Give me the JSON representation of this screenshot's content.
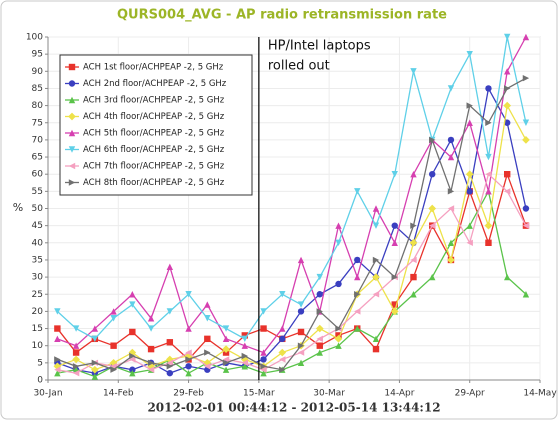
{
  "chart_data": {
    "type": "line",
    "title": "QURS004_AVG - AP radio retransmission rate",
    "x_label": "2012-02-01 00:44:12 - 2012-05-14 13:44:12",
    "y_label": "%",
    "annotation": {
      "x": "2012-03-15",
      "lines": [
        "HP/Intel laptops",
        "rolled out"
      ]
    },
    "x": [
      "2012-02-01",
      "2012-02-05",
      "2012-02-09",
      "2012-02-13",
      "2012-02-17",
      "2012-02-21",
      "2012-02-25",
      "2012-02-29",
      "2012-03-04",
      "2012-03-08",
      "2012-03-12",
      "2012-03-16",
      "2012-03-20",
      "2012-03-24",
      "2012-03-28",
      "2012-04-01",
      "2012-04-05",
      "2012-04-09",
      "2012-04-13",
      "2012-04-17",
      "2012-04-21",
      "2012-04-25",
      "2012-04-29",
      "2012-05-03",
      "2012-05-07",
      "2012-05-11"
    ],
    "xlim": [
      "2012-01-30",
      "2012-05-14"
    ],
    "xticks": [
      {
        "value": "2012-01-30",
        "label": "30-Jan"
      },
      {
        "value": "2012-02-14",
        "label": "14-Feb"
      },
      {
        "value": "2012-02-29",
        "label": "29-Feb"
      },
      {
        "value": "2012-03-15",
        "label": "15-Mar"
      },
      {
        "value": "2012-03-30",
        "label": "30-Mar"
      },
      {
        "value": "2012-04-14",
        "label": "14-Apr"
      },
      {
        "value": "2012-04-29",
        "label": "29-Apr"
      },
      {
        "value": "2012-05-14",
        "label": "14-May"
      }
    ],
    "ylim": [
      0,
      100
    ],
    "yticks": [
      0,
      5,
      10,
      15,
      20,
      25,
      30,
      35,
      40,
      45,
      50,
      55,
      60,
      65,
      70,
      75,
      80,
      85,
      90,
      95,
      100
    ],
    "grid": true,
    "legend": "upper-left",
    "series": [
      {
        "name": "ACH 1st floor/ACHPEAP -2, 5 GHz",
        "color": "#e8322b",
        "marker": "square",
        "values": [
          15,
          8,
          12,
          10,
          14,
          9,
          11,
          6,
          12,
          8,
          13,
          15,
          12,
          14,
          10,
          13,
          15,
          9,
          22,
          30,
          45,
          35,
          55,
          40,
          60,
          45
        ]
      },
      {
        "name": "ACH 2nd floor/ACHPEAP -2, 5 GHz",
        "color": "#3a3fc0",
        "marker": "circle",
        "values": [
          5,
          3,
          2,
          4,
          3,
          5,
          2,
          4,
          3,
          5,
          4,
          6,
          12,
          20,
          25,
          28,
          35,
          30,
          45,
          40,
          60,
          70,
          55,
          85,
          75,
          50
        ]
      },
      {
        "name": "ACH 3rd floor/ACHPEAP -2, 5 GHz",
        "color": "#5ac34a",
        "marker": "triangle",
        "values": [
          2,
          3,
          1,
          4,
          2,
          3,
          6,
          2,
          5,
          3,
          4,
          2,
          3,
          5,
          8,
          10,
          15,
          12,
          20,
          25,
          30,
          40,
          45,
          55,
          30,
          25
        ]
      },
      {
        "name": "ACH 4th floor/ACHPEAP -2, 5 GHz",
        "color": "#eee24a",
        "marker": "diamond",
        "values": [
          4,
          6,
          3,
          5,
          8,
          4,
          6,
          7,
          5,
          9,
          6,
          4,
          8,
          10,
          15,
          12,
          25,
          30,
          20,
          40,
          50,
          35,
          60,
          45,
          80,
          70
        ]
      },
      {
        "name": "ACH 5th floor/ACHPEAP -2, 5 GHz",
        "color": "#d63fb0",
        "marker": "triangle",
        "values": [
          12,
          10,
          15,
          20,
          25,
          18,
          33,
          15,
          22,
          12,
          10,
          8,
          15,
          35,
          20,
          45,
          30,
          50,
          40,
          60,
          70,
          65,
          75,
          55,
          90,
          100
        ]
      },
      {
        "name": "ACH 6th floor/ACHPEAP -2, 5 GHz",
        "color": "#5fd0e8",
        "marker": "triangle-down",
        "values": [
          20,
          15,
          12,
          18,
          22,
          15,
          20,
          25,
          18,
          15,
          12,
          20,
          25,
          22,
          30,
          40,
          55,
          45,
          60,
          90,
          70,
          85,
          95,
          65,
          100,
          75
        ]
      },
      {
        "name": "ACH 7th floor/ACHPEAP -2, 5 GHz",
        "color": "#f5a0c0",
        "marker": "triangle-left",
        "values": [
          3,
          2,
          5,
          4,
          6,
          3,
          5,
          8,
          4,
          6,
          5,
          3,
          6,
          8,
          12,
          15,
          20,
          25,
          30,
          35,
          45,
          50,
          40,
          60,
          55,
          45
        ]
      },
      {
        "name": "ACH 8th floor/ACHPEAP -2, 5 GHz",
        "color": "#707070",
        "marker": "triangle-right",
        "values": [
          6,
          4,
          5,
          3,
          7,
          5,
          4,
          6,
          8,
          5,
          7,
          4,
          3,
          10,
          20,
          15,
          25,
          35,
          30,
          45,
          70,
          55,
          80,
          75,
          85,
          88
        ]
      }
    ]
  }
}
